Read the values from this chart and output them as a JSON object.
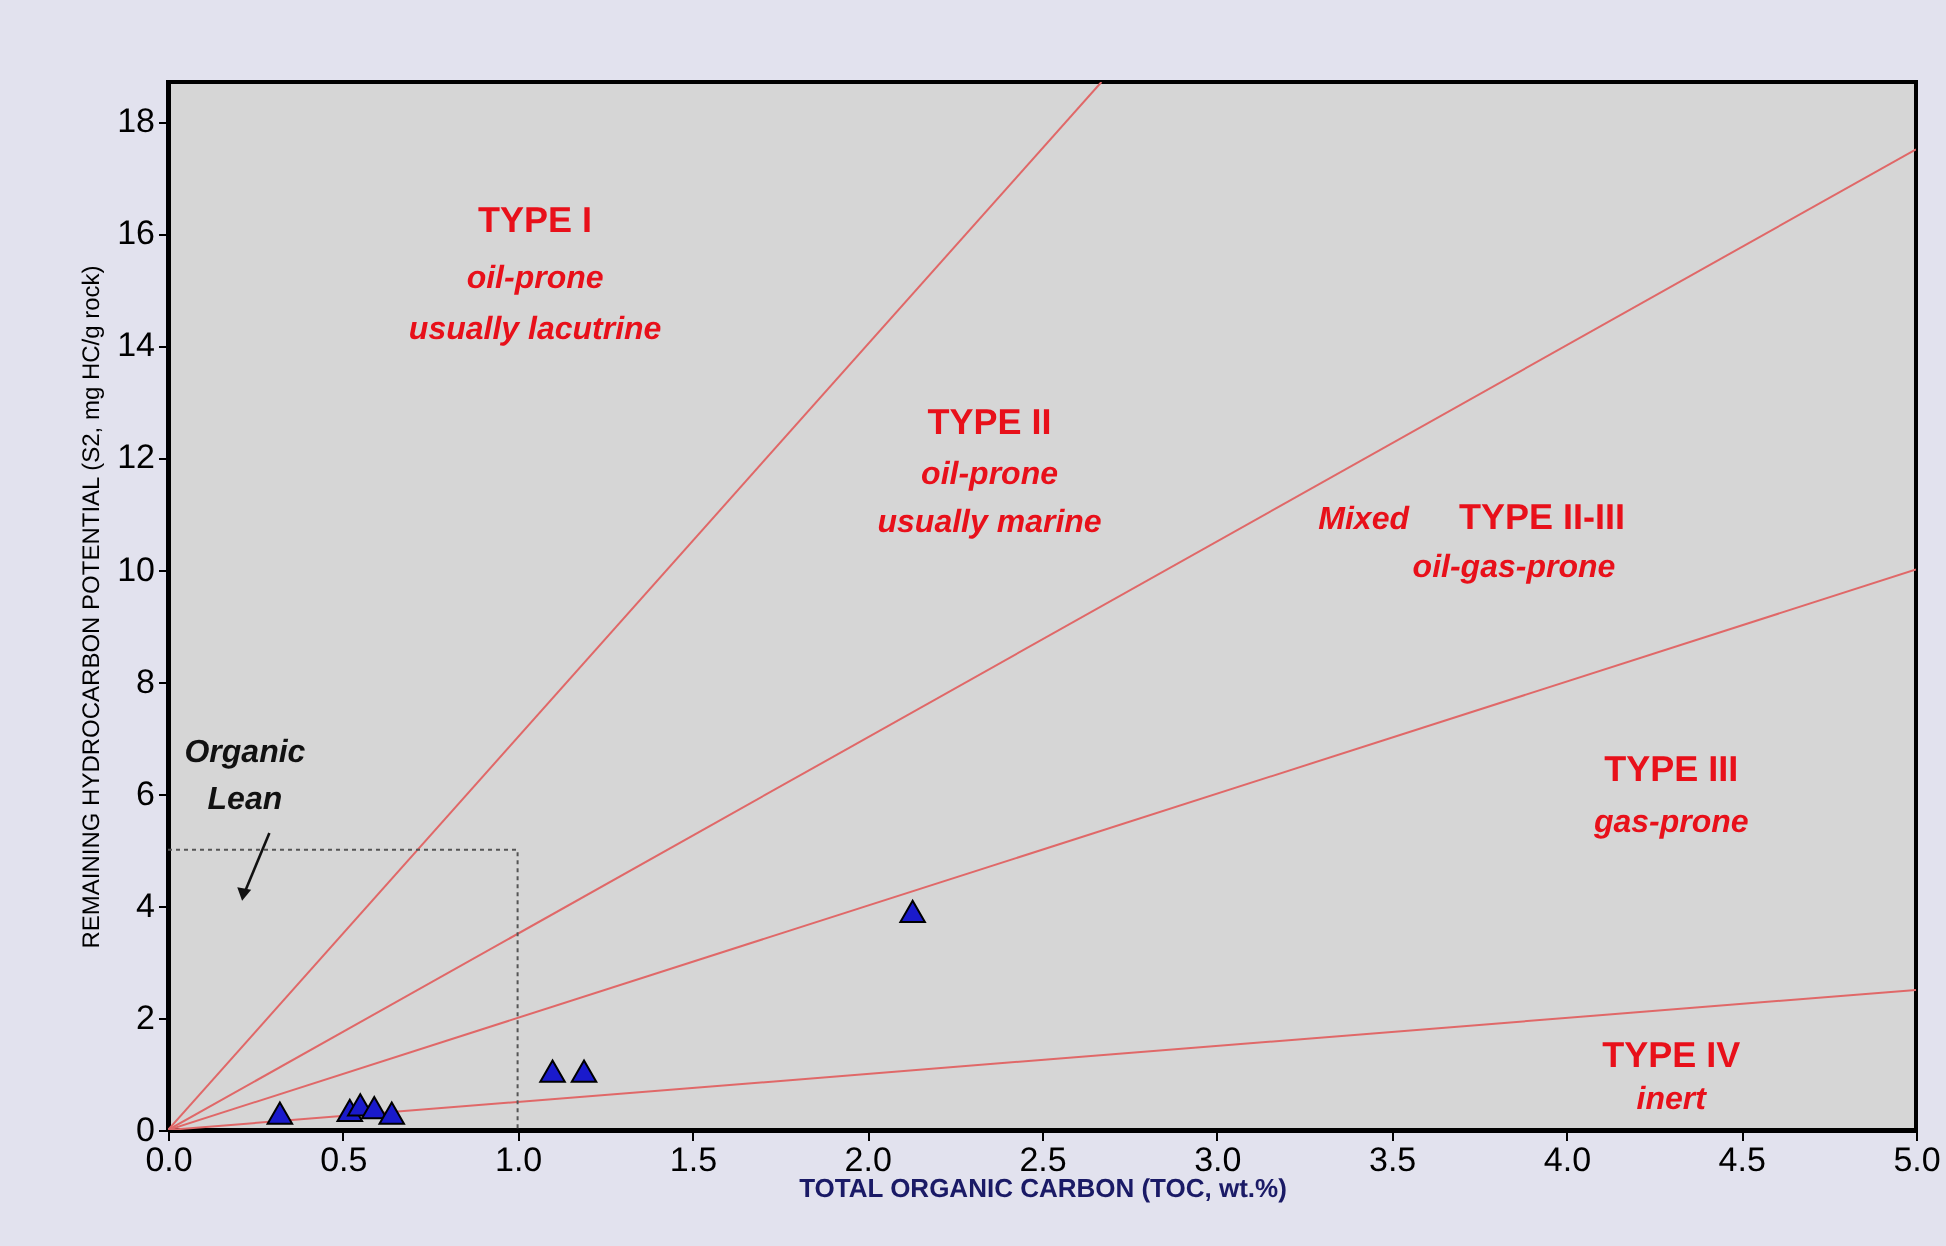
{
  "chart_data": {
    "type": "scatter",
    "xlabel": "TOTAL ORGANIC CARBON (TOC, wt.%)",
    "ylabel": "REMAINING HYDROCARBON POTENTIAL (S2, mg HC/g rock)",
    "xlim": [
      0,
      5
    ],
    "ylim": [
      0,
      18.7
    ],
    "xticks": [
      {
        "value": 0,
        "label": "0.0"
      },
      {
        "value": 0.5,
        "label": "0.5"
      },
      {
        "value": 1,
        "label": "1.0"
      },
      {
        "value": 1.5,
        "label": "1.5"
      },
      {
        "value": 2,
        "label": "2.0"
      },
      {
        "value": 2.5,
        "label": "2.5"
      },
      {
        "value": 3,
        "label": "3.0"
      },
      {
        "value": 3.5,
        "label": "3.5"
      },
      {
        "value": 4,
        "label": "4.0"
      },
      {
        "value": 4.5,
        "label": "4.5"
      },
      {
        "value": 5,
        "label": "5.0"
      }
    ],
    "yticks": [
      0,
      2,
      4,
      6,
      8,
      10,
      12,
      14,
      16,
      18
    ],
    "series": [
      {
        "type": "line",
        "color": "#e06868",
        "line_style": "solid",
        "x": [
          0,
          2.67
        ],
        "values": [
          0,
          18.7
        ]
      },
      {
        "type": "line",
        "color": "#e06868",
        "line_style": "solid",
        "x": [
          0,
          5
        ],
        "values": [
          0,
          17.5
        ]
      },
      {
        "type": "line",
        "color": "#e06868",
        "line_style": "solid",
        "x": [
          0,
          5
        ],
        "values": [
          0,
          10
        ]
      },
      {
        "type": "line",
        "color": "#e06868",
        "line_style": "solid",
        "x": [
          0,
          5
        ],
        "values": [
          0,
          2.5
        ]
      },
      {
        "type": "line",
        "color": "#555555",
        "line_style": "dotted",
        "x": [
          0,
          1,
          1
        ],
        "values": [
          5,
          5,
          0
        ]
      },
      {
        "color": "#1a1acc",
        "marker": "triangle",
        "x": [
          0.32,
          0.52,
          0.55,
          0.59,
          0.64,
          1.1,
          1.19,
          2.13
        ],
        "values": [
          0.3,
          0.35,
          0.45,
          0.4,
          0.3,
          1.05,
          1.05,
          3.9
        ]
      }
    ],
    "annotations": [
      "TYPE I",
      "oil-prone",
      "usually lacutrine",
      "TYPE II",
      "oil-prone",
      "usually marine",
      "Mixed",
      "TYPE II-III",
      "oil-gas-prone",
      "TYPE III",
      "gas-prone",
      "TYPE  IV",
      "inert",
      "Organic",
      "Lean"
    ]
  }
}
